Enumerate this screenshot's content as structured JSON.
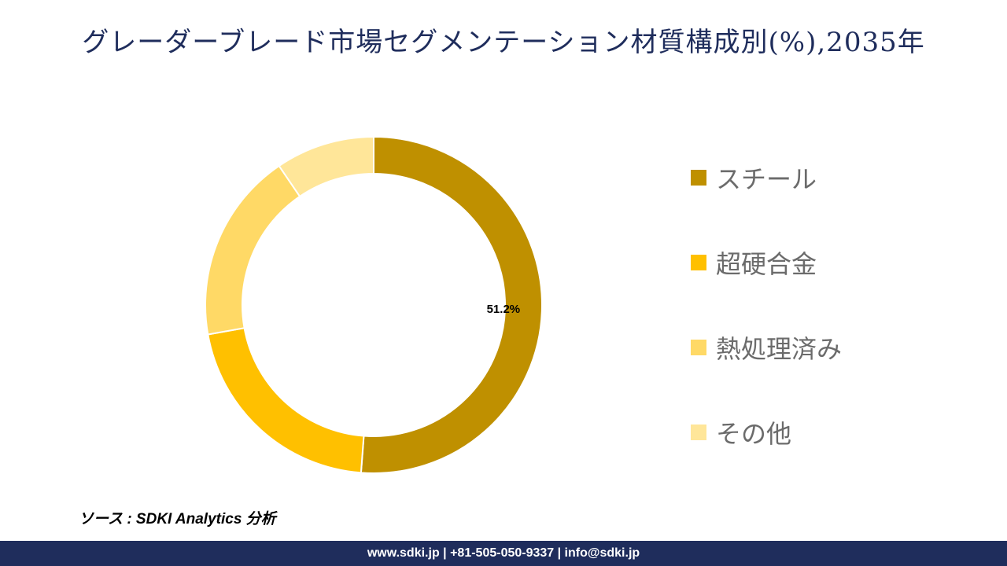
{
  "title": "グレーダーブレード市場セグメンテーション材質構成別(%),2035年",
  "chart_data": {
    "type": "pie",
    "categories": [
      "スチール",
      "超硬合金",
      "熱処理済み",
      "その他"
    ],
    "values": [
      51.2,
      21.0,
      18.3,
      9.5
    ],
    "data_labels": [
      "51.2%",
      "",
      "",
      ""
    ],
    "colors": [
      "#bf9000",
      "#ffc000",
      "#ffd966",
      "#ffe699"
    ],
    "donut": true,
    "legend_position": "right"
  },
  "source": "ソース : SDKI Analytics 分析",
  "footer": "www.sdki.jp | +81-505-050-9337 | info@sdki.jp"
}
